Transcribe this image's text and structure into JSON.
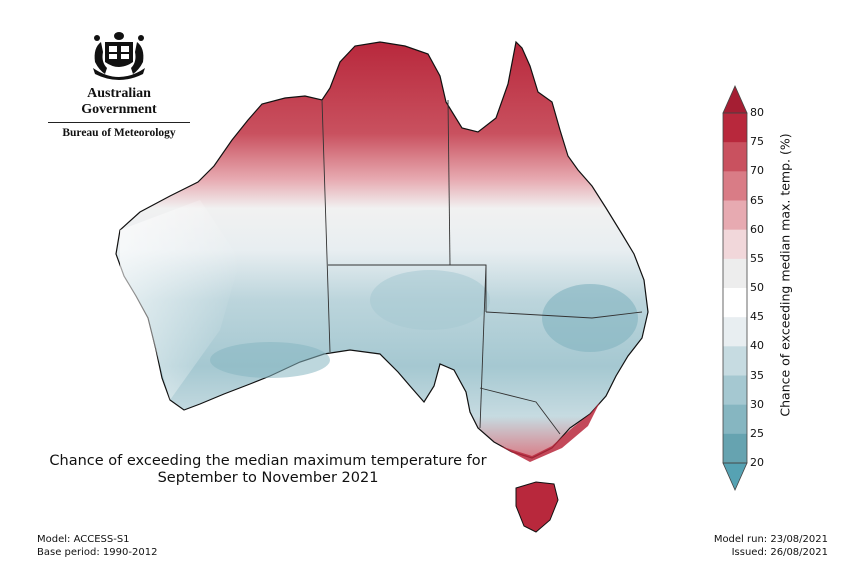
{
  "header": {
    "government": "Australian Government",
    "agency": "Bureau of Meteorology",
    "crest_icon": "coat-of-arms-icon"
  },
  "map": {
    "title_line1": "Chance of exceeding the median maximum temperature for",
    "title_line2": "September to November 2021"
  },
  "colorbar": {
    "label": "Chance of exceeding median max. temp. (%)",
    "ticks": [
      "80",
      "75",
      "70",
      "65",
      "60",
      "55",
      "50",
      "45",
      "40",
      "35",
      "30",
      "25",
      "20"
    ],
    "colors": [
      "#b8283c",
      "#c9515f",
      "#d97c86",
      "#e7aab1",
      "#f1d7da",
      "#ededed",
      "#ffffff",
      "#e8eef1",
      "#c6dbe1",
      "#a5c8d1",
      "#86b6c1",
      "#66a3b0"
    ],
    "over_color": "#a51e33",
    "under_color": "#56a2b3"
  },
  "footer": {
    "model": "Model: ACCESS-S1",
    "base_period": "Base period: 1990-2012",
    "model_run": "Model run: 23/08/2021",
    "issued": "Issued: 26/08/2021"
  }
}
